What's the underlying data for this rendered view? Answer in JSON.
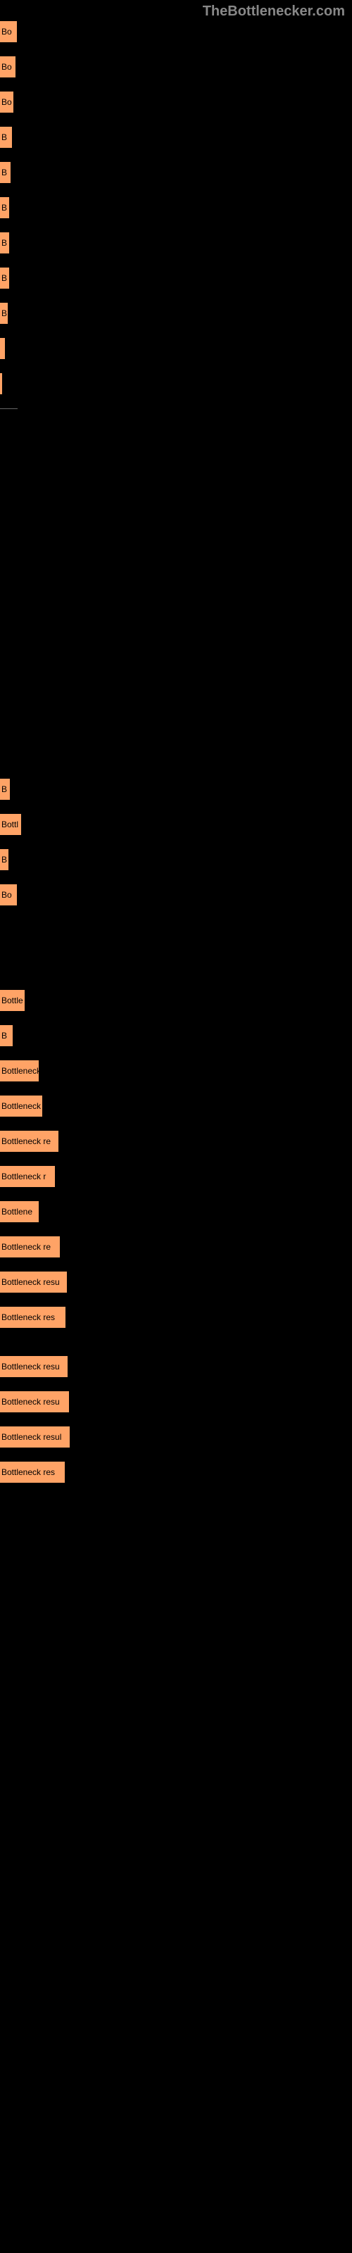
{
  "brand": "TheBottlenecker.com",
  "bars": [
    {
      "width": 24,
      "label": "Bo"
    },
    {
      "width": 22,
      "label": "Bo"
    },
    {
      "width": 19,
      "label": "Bo"
    },
    {
      "width": 17,
      "label": "B"
    },
    {
      "width": 15,
      "label": "B"
    },
    {
      "width": 13,
      "label": "B"
    },
    {
      "width": 13,
      "label": "B"
    },
    {
      "width": 13,
      "label": "B"
    },
    {
      "width": 11,
      "label": "B"
    },
    {
      "width": 7,
      "label": ""
    },
    {
      "width": 3,
      "label": ""
    },
    {
      "divider": true
    },
    {
      "spacer": 520
    },
    {
      "width": 14,
      "label": "B"
    },
    {
      "width": 30,
      "label": "Bottl"
    },
    {
      "width": 12,
      "label": "B"
    },
    {
      "width": 24,
      "label": "Bo"
    },
    {
      "spacer": 100
    },
    {
      "width": 35,
      "label": "Bottle"
    },
    {
      "width": 18,
      "label": "B"
    },
    {
      "width": 55,
      "label": "Bottleneck"
    },
    {
      "width": 60,
      "label": "Bottleneck"
    },
    {
      "width": 83,
      "label": "Bottleneck re"
    },
    {
      "width": 78,
      "label": "Bottleneck r"
    },
    {
      "width": 55,
      "label": "Bottlene"
    },
    {
      "width": 85,
      "label": "Bottleneck re"
    },
    {
      "width": 95,
      "label": "Bottleneck resu"
    },
    {
      "width": 93,
      "label": "Bottleneck res"
    },
    {
      "spacer": 20
    },
    {
      "width": 96,
      "label": "Bottleneck resu"
    },
    {
      "width": 98,
      "label": "Bottleneck resu"
    },
    {
      "width": 99,
      "label": "Bottleneck resul"
    },
    {
      "width": 92,
      "label": "Bottleneck res"
    }
  ],
  "colors": {
    "bar_color": "#ffa366",
    "background": "#000000",
    "text_color": "#000000",
    "brand_color": "#888888"
  }
}
